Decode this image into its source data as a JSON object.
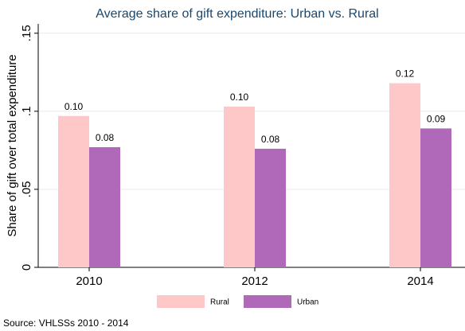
{
  "chart_data": {
    "type": "bar",
    "title": "Average share of gift expenditure: Urban vs. Rural",
    "y_label": "Share of gift over total expenditure",
    "source": "Source: VHLSSs 2010 - 2014",
    "categories": [
      "2010",
      "2012",
      "2014"
    ],
    "series": [
      {
        "name": "Rural",
        "color": "#ffc8c8",
        "values": [
          0.097,
          0.103,
          0.118
        ],
        "value_labels": [
          "0.10",
          "0.10",
          "0.12"
        ]
      },
      {
        "name": "Urban",
        "color": "#b068b8",
        "values": [
          0.077,
          0.076,
          0.089
        ],
        "value_labels": [
          "0.08",
          "0.08",
          "0.09"
        ]
      }
    ],
    "ylim": [
      0,
      0.156
    ],
    "yticks": [
      0,
      {
        "value": 0.05,
        "label": ".05"
      },
      {
        "value": 0.1,
        "label": ".1"
      },
      {
        "value": 0.15,
        "label": ".15"
      }
    ],
    "grid": true
  }
}
